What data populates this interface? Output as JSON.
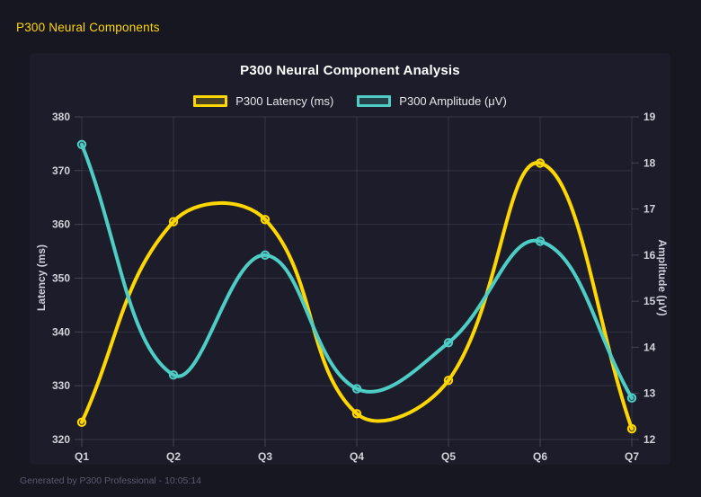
{
  "window": {
    "header_title": "P300 Neural Components",
    "footer_status": "Generated by P300 Professional - 10:05:14"
  },
  "colors": {
    "page_bg": "#171722",
    "panel_bg": "#1C1C2B",
    "accent_gold": "#FFD700",
    "accent_teal": "#4ECDC4",
    "grid": "rgba(255,255,255,0.10)",
    "tick_text": "#d2d2da",
    "title_text": "#ffffff"
  },
  "chart_data": {
    "type": "line",
    "title": "P300 Neural Component Analysis",
    "categories": [
      "Q1",
      "Q2",
      "Q3",
      "Q4",
      "Q5",
      "Q6",
      "Q7"
    ],
    "series": [
      {
        "name": "P300 Latency (ms)",
        "axis": "left",
        "color": "#FFD700",
        "values": [
          323.2,
          360.5,
          360.9,
          324.8,
          331.0,
          371.4,
          322.0
        ]
      },
      {
        "name": "P300 Amplitude (μV)",
        "axis": "right",
        "color": "#4ECDC4",
        "values": [
          18.4,
          13.4,
          16.0,
          13.1,
          14.1,
          16.3,
          12.9
        ]
      }
    ],
    "left_axis": {
      "label": "Latency (ms)",
      "min": 320,
      "max": 380,
      "step": 10
    },
    "right_axis": {
      "label": "Amplitude (μV)",
      "min": 12,
      "max": 19,
      "step": 1
    },
    "grid": true,
    "legend_position": "top",
    "line_tension": 0.4
  }
}
